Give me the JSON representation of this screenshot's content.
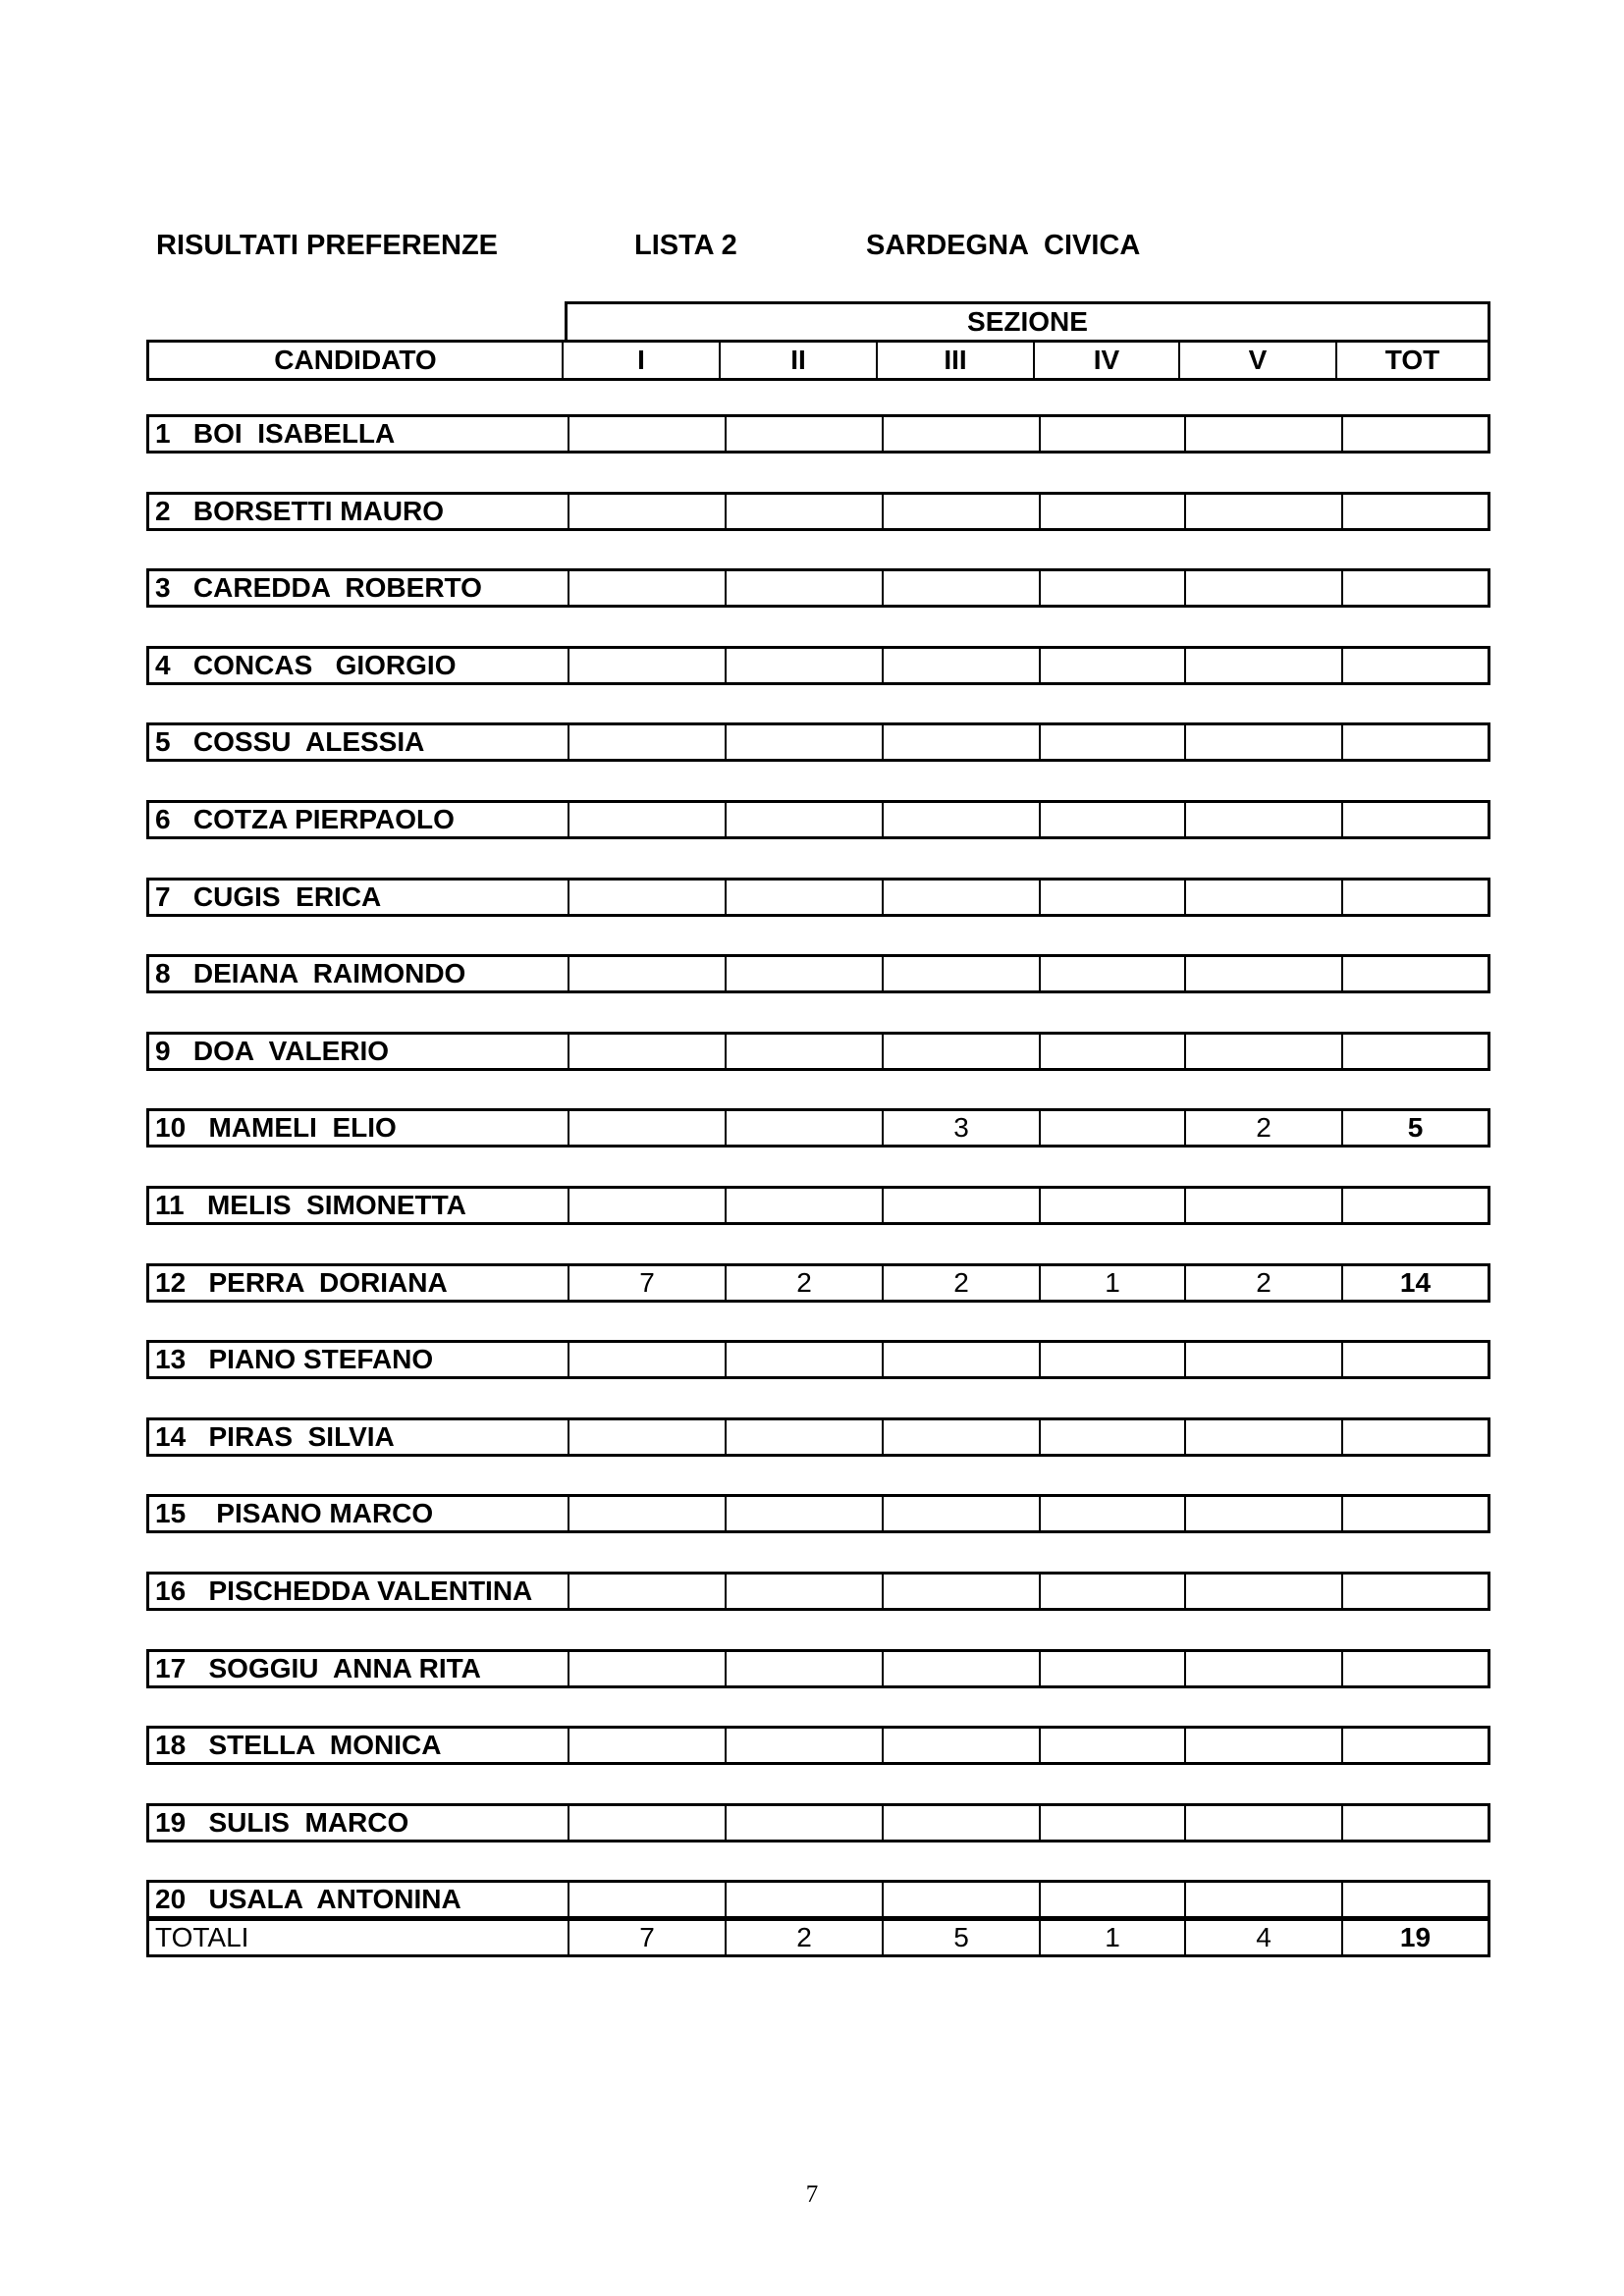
{
  "header": {
    "title": "RISULTATI PREFERENZE",
    "list": "LISTA 2",
    "party": "SARDEGNA  CIVICA"
  },
  "table": {
    "group_header": "SEZIONE",
    "columns": [
      "CANDIDATO",
      "I",
      "II",
      "III",
      "IV",
      "V",
      "TOT"
    ],
    "rows": [
      [
        "1   BOI  ISABELLA",
        "",
        "",
        "",
        "",
        "",
        ""
      ],
      [
        "2   BORSETTI MAURO",
        "",
        "",
        "",
        "",
        "",
        ""
      ],
      [
        "3   CAREDDA  ROBERTO",
        "",
        "",
        "",
        "",
        "",
        ""
      ],
      [
        "4   CONCAS   GIORGIO",
        "",
        "",
        "",
        "",
        "",
        ""
      ],
      [
        "5   COSSU  ALESSIA",
        "",
        "",
        "",
        "",
        "",
        ""
      ],
      [
        "6   COTZA PIERPAOLO",
        "",
        "",
        "",
        "",
        "",
        ""
      ],
      [
        "7   CUGIS  ERICA",
        "",
        "",
        "",
        "",
        "",
        ""
      ],
      [
        "8   DEIANA  RAIMONDO",
        "",
        "",
        "",
        "",
        "",
        ""
      ],
      [
        "9   DOA  VALERIO",
        "",
        "",
        "",
        "",
        "",
        ""
      ],
      [
        "10   MAMELI  ELIO",
        "",
        "",
        "3",
        "",
        "2",
        "5"
      ],
      [
        "11   MELIS  SIMONETTA",
        "",
        "",
        "",
        "",
        "",
        ""
      ],
      [
        "12   PERRA  DORIANA",
        "7",
        "2",
        "2",
        "1",
        "2",
        "14"
      ],
      [
        "13   PIANO STEFANO",
        "",
        "",
        "",
        "",
        "",
        ""
      ],
      [
        "14   PIRAS  SILVIA",
        "",
        "",
        "",
        "",
        "",
        ""
      ],
      [
        "15    PISANO MARCO",
        "",
        "",
        "",
        "",
        "",
        ""
      ],
      [
        "16   PISCHEDDA VALENTINA",
        "",
        "",
        "",
        "",
        "",
        ""
      ],
      [
        "17   SOGGIU  ANNA RITA",
        "",
        "",
        "",
        "",
        "",
        ""
      ],
      [
        "18   STELLA  MONICA",
        "",
        "",
        "",
        "",
        "",
        ""
      ],
      [
        "19   SULIS  MARCO",
        "",
        "",
        "",
        "",
        "",
        ""
      ],
      [
        "20   USALA  ANTONINA",
        "",
        "",
        "",
        "",
        "",
        ""
      ]
    ],
    "totals": [
      "TOTALI",
      "7",
      "2",
      "5",
      "1",
      "4",
      "19"
    ]
  },
  "page_number": "7"
}
